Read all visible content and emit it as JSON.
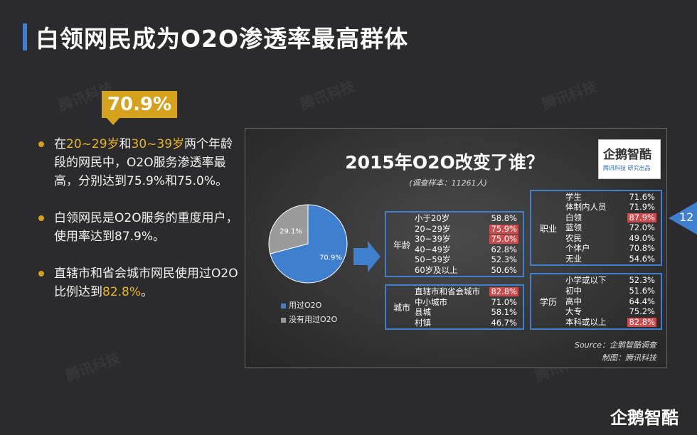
{
  "title": "白领网民成为O2O渗透率最高群体",
  "badge": "70.9%",
  "bullets": [
    {
      "parts": [
        {
          "t": "在",
          "hl": false
        },
        {
          "t": "20~29岁",
          "hl": true
        },
        {
          "t": "和",
          "hl": false
        },
        {
          "t": "30~39岁",
          "hl": true
        },
        {
          "t": "两个年龄段的网民中，O2O服务渗透率最高，分别达到75.9%和75.0%。",
          "hl": false
        }
      ]
    },
    {
      "parts": [
        {
          "t": "白领网民是O2O服务的重度用户，使用率达到87.9%。",
          "hl": false
        }
      ]
    },
    {
      "parts": [
        {
          "t": "直辖市和省会城市网民使用过O2O比例达到",
          "hl": false
        },
        {
          "t": "82.8%",
          "hl": true
        },
        {
          "t": "。",
          "hl": false
        }
      ]
    }
  ],
  "panel": {
    "title": "2015年O2O改变了谁？",
    "subtitle": "(调查样本：11261人)",
    "logo_text": "企鹅智酷",
    "logo_sub": "腾讯科技  研究出品",
    "source": "Source：企鹅智酷调查",
    "maker": "制图：腾讯科技"
  },
  "chart_data": [
    {
      "type": "pie",
      "categories": [
        "用过O2O",
        "没有用过O2O"
      ],
      "values": [
        70.9,
        29.1
      ],
      "labels": [
        "70.9%",
        "29.1%"
      ],
      "colors": [
        "#3f7fd0",
        "#9a9a9a"
      ],
      "legend": "bottom"
    },
    {
      "type": "table",
      "groups": [
        {
          "name": "年龄",
          "rows": [
            {
              "label": "小于20岁",
              "value": "58.8%",
              "highlight": false
            },
            {
              "label": "20~29岁",
              "value": "75.9%",
              "highlight": true
            },
            {
              "label": "30~39岁",
              "value": "75.0%",
              "highlight": true
            },
            {
              "label": "40~49岁",
              "value": "62.8%",
              "highlight": false
            },
            {
              "label": "50~59岁",
              "value": "52.3%",
              "highlight": false
            },
            {
              "label": "60岁及以上",
              "value": "50.6%",
              "highlight": false
            }
          ]
        },
        {
          "name": "城市",
          "rows": [
            {
              "label": "直辖市和省会城市",
              "value": "82.8%",
              "highlight": true
            },
            {
              "label": "中小城市",
              "value": "71.0%",
              "highlight": false
            },
            {
              "label": "县城",
              "value": "58.1%",
              "highlight": false
            },
            {
              "label": "村镇",
              "value": "46.7%",
              "highlight": false
            }
          ]
        },
        {
          "name": "职业",
          "rows": [
            {
              "label": "学生",
              "value": "71.6%",
              "highlight": false
            },
            {
              "label": "体制内人员",
              "value": "71.9%",
              "highlight": false
            },
            {
              "label": "白领",
              "value": "87.9%",
              "highlight": true
            },
            {
              "label": "蓝领",
              "value": "72.0%",
              "highlight": false
            },
            {
              "label": "农民",
              "value": "49.0%",
              "highlight": false
            },
            {
              "label": "个体户",
              "value": "70.8%",
              "highlight": false
            },
            {
              "label": "无业",
              "value": "54.6%",
              "highlight": false
            }
          ]
        },
        {
          "name": "学历",
          "rows": [
            {
              "label": "小学或以下",
              "value": "52.3%",
              "highlight": false
            },
            {
              "label": "初中",
              "value": "51.6%",
              "highlight": false
            },
            {
              "label": "高中",
              "value": "64.4%",
              "highlight": false
            },
            {
              "label": "大专",
              "value": "75.2%",
              "highlight": false
            },
            {
              "label": "本科或以上",
              "value": "82.8%",
              "highlight": true
            }
          ]
        }
      ]
    }
  ],
  "page_number": "12",
  "footer_logo": "企鹅智酷",
  "watermark": "腾讯科技",
  "colors": {
    "accent": "#3f7fd0",
    "highlight": "#e8b528",
    "red_cell": "#c94b4b"
  }
}
